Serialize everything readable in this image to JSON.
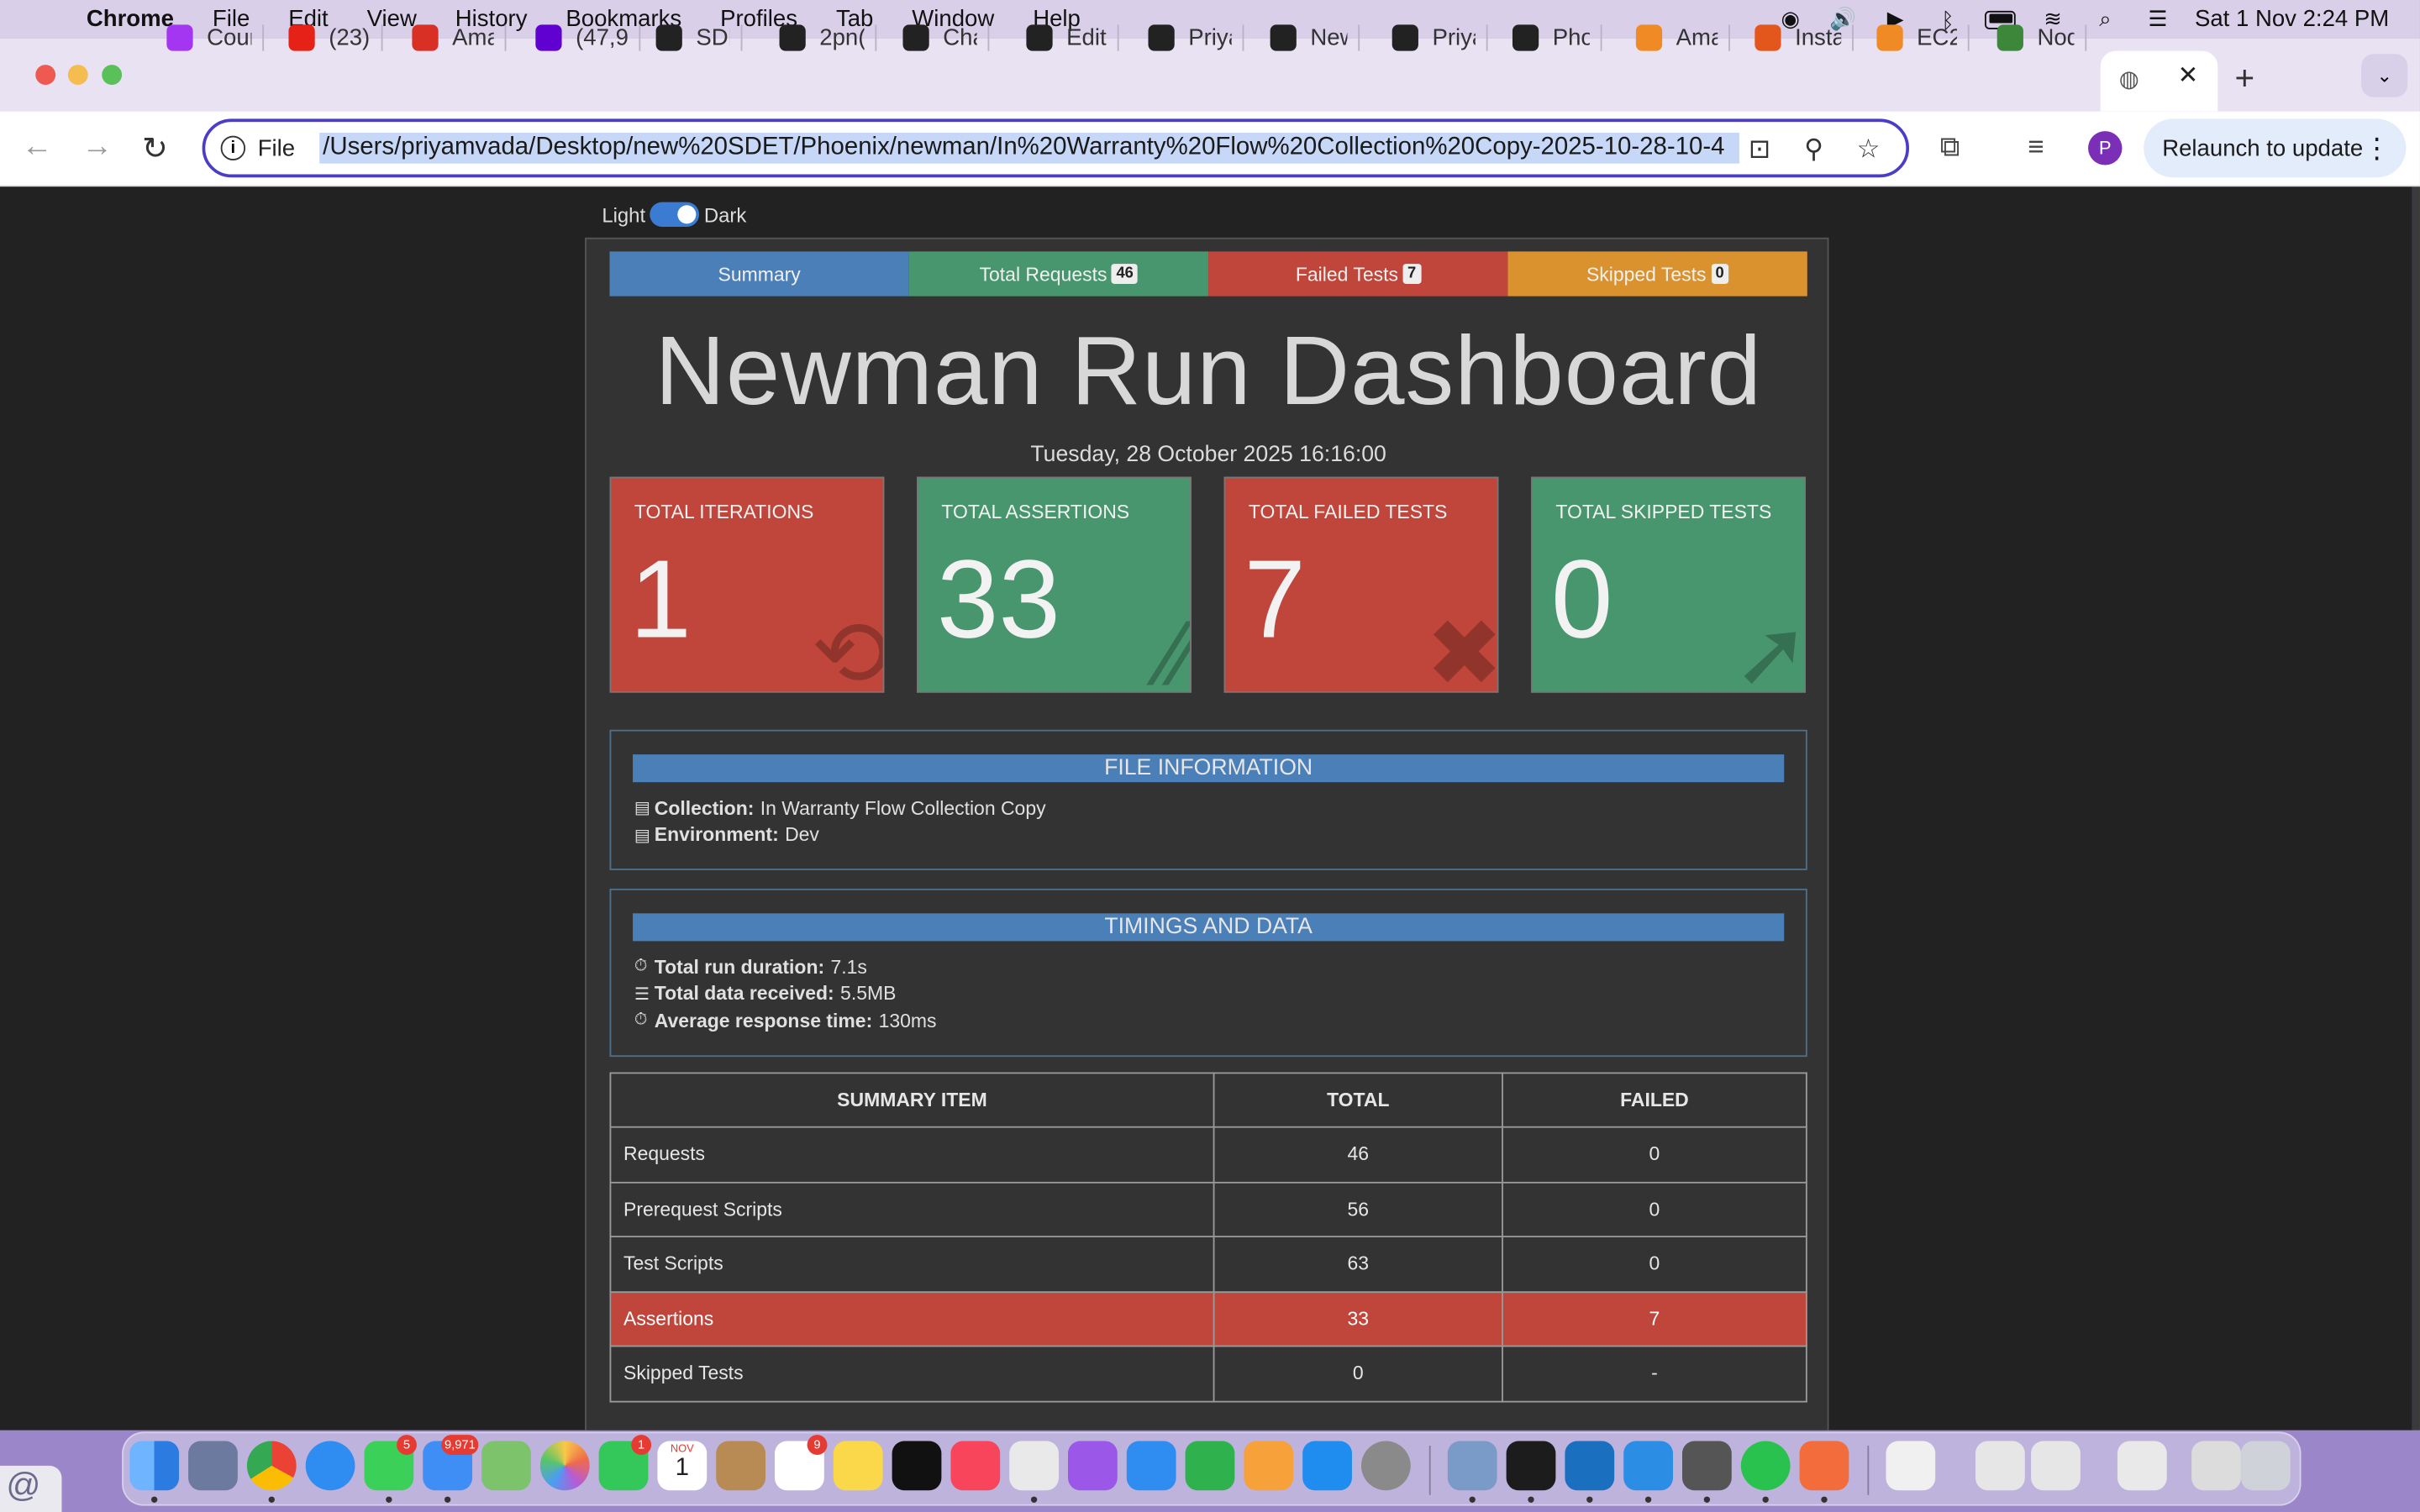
{
  "menubar": {
    "app": "Chrome",
    "items": [
      "File",
      "Edit",
      "View",
      "History",
      "Bookmarks",
      "Profiles",
      "Tab",
      "Window",
      "Help"
    ],
    "clock": "Sat 1 Nov  2:24 PM"
  },
  "tabs": [
    {
      "label": "Cour",
      "icon": "udemy-icon",
      "color": "#a435f0"
    },
    {
      "label": "(23)",
      "icon": "youtube-icon",
      "color": "#e62117"
    },
    {
      "label": "Ama",
      "icon": "gmail-icon",
      "color": "#d93025"
    },
    {
      "label": "(47,9",
      "icon": "yahoo-mail-icon",
      "color": "#6001d2"
    },
    {
      "label": "SDE",
      "icon": "tab-icon",
      "color": "#222222"
    },
    {
      "label": "2pn(",
      "icon": "tab-icon",
      "color": "#222222"
    },
    {
      "label": "Chat",
      "icon": "chatgpt-icon",
      "color": "#222222"
    },
    {
      "label": "Editi",
      "icon": "github-icon",
      "color": "#222222"
    },
    {
      "label": "Priya",
      "icon": "github-icon",
      "color": "#222222"
    },
    {
      "label": "New",
      "icon": "globe-icon",
      "color": "#222222"
    },
    {
      "label": "Priya",
      "icon": "github-icon",
      "color": "#222222"
    },
    {
      "label": "Phoe",
      "icon": "github-icon",
      "color": "#222222"
    },
    {
      "label": "Ama",
      "icon": "aws-icon",
      "color": "#f08a24"
    },
    {
      "label": "Insta",
      "icon": "aws-icon",
      "color": "#e3571c"
    },
    {
      "label": "EC2",
      "icon": "aws-icon",
      "color": "#f08a24"
    },
    {
      "label": "Nod",
      "icon": "node-icon",
      "color": "#3c873a"
    }
  ],
  "toolbar": {
    "scheme": "File",
    "url": "/Users/priyamvada/Desktop/new%20SDET/Phoenix/newman/In%20Warranty%20Flow%20Collection%20Copy-2025-10-28-10-4",
    "avatar": "P",
    "relaunch": "Relaunch to update"
  },
  "page": {
    "theme_light": "Light",
    "theme_dark": "Dark",
    "nav": {
      "summary": "Summary",
      "total_requests": "Total Requests",
      "total_requests_count": "46",
      "failed_tests": "Failed Tests",
      "failed_tests_count": "7",
      "skipped_tests": "Skipped Tests",
      "skipped_tests_count": "0"
    },
    "title": "Newman Run Dashboard",
    "date": "Tuesday, 28 October 2025 16:16:00",
    "cards": [
      {
        "label": "TOTAL ITERATIONS",
        "value": "1"
      },
      {
        "label": "TOTAL ASSERTIONS",
        "value": "33"
      },
      {
        "label": "TOTAL FAILED TESTS",
        "value": "7"
      },
      {
        "label": "TOTAL SKIPPED TESTS",
        "value": "0"
      }
    ],
    "file_info": {
      "heading": "FILE INFORMATION",
      "collection_label": "Collection:",
      "collection": "In Warranty Flow Collection Copy",
      "environment_label": "Environment:",
      "environment": "Dev"
    },
    "timings": {
      "heading": "TIMINGS AND DATA",
      "duration_label": "Total run duration:",
      "duration": "7.1s",
      "data_label": "Total data received:",
      "data": "5.5MB",
      "avg_label": "Average response time:",
      "avg": "130ms"
    },
    "summary_table": {
      "headers": [
        "SUMMARY ITEM",
        "TOTAL",
        "FAILED"
      ],
      "rows": [
        {
          "item": "Requests",
          "total": "46",
          "failed": "0"
        },
        {
          "item": "Prerequest Scripts",
          "total": "56",
          "failed": "0"
        },
        {
          "item": "Test Scripts",
          "total": "63",
          "failed": "0"
        },
        {
          "item": "Assertions",
          "total": "33",
          "failed": "7"
        },
        {
          "item": "Skipped Tests",
          "total": "0",
          "failed": "-"
        }
      ]
    }
  },
  "colors": {
    "blue": "#4a7fb8",
    "green": "#48966e",
    "red": "#c0463b",
    "orange": "#d9922d"
  },
  "dock": {
    "badges": {
      "messages": "5",
      "mail": "9,971",
      "facetime": "1",
      "reminders": "9"
    },
    "calendar_month": "NOV",
    "calendar_day": "1"
  }
}
